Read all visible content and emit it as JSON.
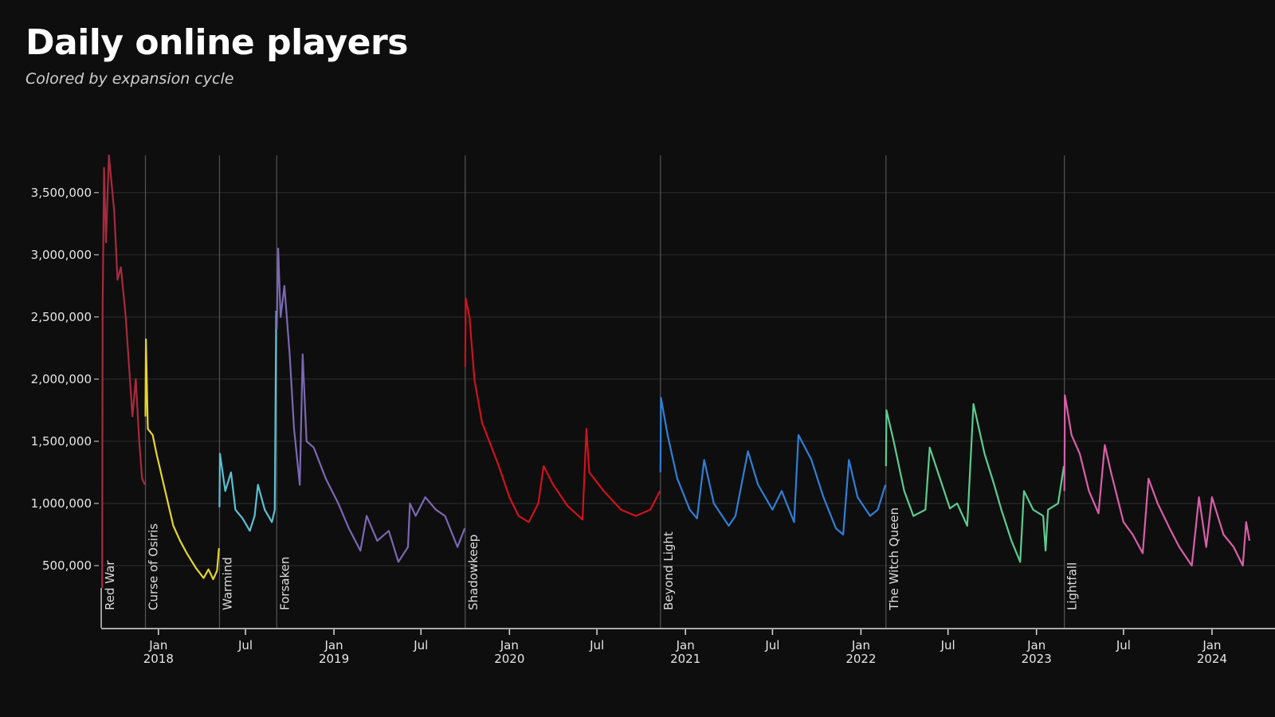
{
  "title": "Daily online players",
  "subtitle": "Colored by expansion cycle",
  "chart_data": {
    "type": "line",
    "title": "Daily online players",
    "subtitle": "Colored by expansion cycle",
    "xlabel": "",
    "ylabel": "",
    "xlim": [
      "2017-09-04",
      "2024-03-19"
    ],
    "ylim": [
      0,
      3800000
    ],
    "grid": true,
    "yticks": [
      {
        "value": 500000,
        "label": "500,000"
      },
      {
        "value": 1000000,
        "label": "1,000,000"
      },
      {
        "value": 1500000,
        "label": "1,500,000"
      },
      {
        "value": 2000000,
        "label": "2,000,000"
      },
      {
        "value": 2500000,
        "label": "2,500,000"
      },
      {
        "value": 3000000,
        "label": "3,000,000"
      },
      {
        "value": 3500000,
        "label": "3,500,000"
      }
    ],
    "xticks": [
      {
        "date": "2018-01-01",
        "label": "Jan",
        "year": "2018"
      },
      {
        "date": "2018-07-01",
        "label": "Jul",
        "year": ""
      },
      {
        "date": "2019-01-01",
        "label": "Jan",
        "year": "2019"
      },
      {
        "date": "2019-07-01",
        "label": "Jul",
        "year": ""
      },
      {
        "date": "2020-01-01",
        "label": "Jan",
        "year": "2020"
      },
      {
        "date": "2020-07-01",
        "label": "Jul",
        "year": ""
      },
      {
        "date": "2021-01-01",
        "label": "Jan",
        "year": "2021"
      },
      {
        "date": "2021-07-01",
        "label": "Jul",
        "year": ""
      },
      {
        "date": "2022-01-01",
        "label": "Jan",
        "year": "2022"
      },
      {
        "date": "2022-07-01",
        "label": "Jul",
        "year": ""
      },
      {
        "date": "2023-01-01",
        "label": "Jan",
        "year": "2023"
      },
      {
        "date": "2023-07-01",
        "label": "Jul",
        "year": ""
      },
      {
        "date": "2024-01-01",
        "label": "Jan",
        "year": "2024"
      }
    ],
    "series": [
      {
        "name": "Red War",
        "start": "2017-09-06",
        "color": "#a82a3e",
        "points": [
          [
            "2017-09-06",
            320000
          ],
          [
            "2017-09-07",
            2600000
          ],
          [
            "2017-09-10",
            3700000
          ],
          [
            "2017-09-14",
            3100000
          ],
          [
            "2017-09-20",
            3800000
          ],
          [
            "2017-10-01",
            3350000
          ],
          [
            "2017-10-08",
            2800000
          ],
          [
            "2017-10-15",
            2900000
          ],
          [
            "2017-10-25",
            2500000
          ],
          [
            "2017-11-01",
            2100000
          ],
          [
            "2017-11-08",
            1700000
          ],
          [
            "2017-11-15",
            2000000
          ],
          [
            "2017-11-22",
            1500000
          ],
          [
            "2017-11-28",
            1200000
          ],
          [
            "2017-12-04",
            1150000
          ]
        ]
      },
      {
        "name": "Curse of Osiris",
        "start": "2017-12-05",
        "color": "#e6d52a",
        "points": [
          [
            "2017-12-05",
            1700000
          ],
          [
            "2017-12-06",
            2320000
          ],
          [
            "2017-12-10",
            1600000
          ],
          [
            "2017-12-20",
            1550000
          ],
          [
            "2017-12-28",
            1400000
          ],
          [
            "2018-01-15",
            1100000
          ],
          [
            "2018-02-01",
            820000
          ],
          [
            "2018-02-15",
            700000
          ],
          [
            "2018-03-01",
            600000
          ],
          [
            "2018-03-20",
            480000
          ],
          [
            "2018-04-05",
            400000
          ],
          [
            "2018-04-15",
            470000
          ],
          [
            "2018-04-25",
            390000
          ],
          [
            "2018-05-03",
            460000
          ],
          [
            "2018-05-07",
            640000
          ]
        ]
      },
      {
        "name": "Warmind",
        "start": "2018-05-08",
        "color": "#5bc0d3",
        "points": [
          [
            "2018-05-08",
            970000
          ],
          [
            "2018-05-09",
            1400000
          ],
          [
            "2018-05-20",
            1100000
          ],
          [
            "2018-06-01",
            1250000
          ],
          [
            "2018-06-10",
            950000
          ],
          [
            "2018-06-25",
            880000
          ],
          [
            "2018-07-10",
            780000
          ],
          [
            "2018-07-20",
            900000
          ],
          [
            "2018-07-27",
            1150000
          ],
          [
            "2018-08-10",
            950000
          ],
          [
            "2018-08-25",
            850000
          ],
          [
            "2018-08-31",
            950000
          ],
          [
            "2018-09-03",
            2550000
          ]
        ]
      },
      {
        "name": "Forsaken",
        "start": "2018-09-04",
        "color": "#7a68b3",
        "points": [
          [
            "2018-09-04",
            2400000
          ],
          [
            "2018-09-07",
            3050000
          ],
          [
            "2018-09-12",
            2500000
          ],
          [
            "2018-09-20",
            2750000
          ],
          [
            "2018-10-01",
            2200000
          ],
          [
            "2018-10-10",
            1600000
          ],
          [
            "2018-10-22",
            1150000
          ],
          [
            "2018-10-28",
            2200000
          ],
          [
            "2018-11-05",
            1500000
          ],
          [
            "2018-11-20",
            1450000
          ],
          [
            "2018-12-15",
            1200000
          ],
          [
            "2019-01-10",
            1000000
          ],
          [
            "2019-02-01",
            800000
          ],
          [
            "2019-02-25",
            620000
          ],
          [
            "2019-03-10",
            900000
          ],
          [
            "2019-04-01",
            700000
          ],
          [
            "2019-04-25",
            780000
          ],
          [
            "2019-05-15",
            530000
          ],
          [
            "2019-06-04",
            650000
          ],
          [
            "2019-06-08",
            1000000
          ],
          [
            "2019-06-20",
            900000
          ],
          [
            "2019-07-10",
            1050000
          ],
          [
            "2019-08-01",
            950000
          ],
          [
            "2019-08-20",
            900000
          ],
          [
            "2019-09-15",
            650000
          ],
          [
            "2019-09-30",
            800000
          ]
        ]
      },
      {
        "name": "Shadowkeep",
        "start": "2019-10-01",
        "color": "#d0121c",
        "points": [
          [
            "2019-10-01",
            2100000
          ],
          [
            "2019-10-02",
            2650000
          ],
          [
            "2019-10-10",
            2500000
          ],
          [
            "2019-10-20",
            2000000
          ],
          [
            "2019-11-05",
            1650000
          ],
          [
            "2019-11-25",
            1450000
          ],
          [
            "2019-12-10",
            1300000
          ],
          [
            "2020-01-01",
            1050000
          ],
          [
            "2020-01-20",
            900000
          ],
          [
            "2020-02-10",
            850000
          ],
          [
            "2020-03-01",
            1000000
          ],
          [
            "2020-03-12",
            1300000
          ],
          [
            "2020-04-01",
            1150000
          ],
          [
            "2020-05-01",
            980000
          ],
          [
            "2020-06-01",
            870000
          ],
          [
            "2020-06-09",
            1600000
          ],
          [
            "2020-06-15",
            1250000
          ],
          [
            "2020-07-15",
            1100000
          ],
          [
            "2020-08-20",
            950000
          ],
          [
            "2020-09-20",
            900000
          ],
          [
            "2020-10-20",
            950000
          ],
          [
            "2020-11-09",
            1100000
          ]
        ]
      },
      {
        "name": "Beyond Light",
        "start": "2020-11-10",
        "color": "#2f7fd6",
        "points": [
          [
            "2020-11-10",
            1250000
          ],
          [
            "2020-11-11",
            1850000
          ],
          [
            "2020-11-25",
            1550000
          ],
          [
            "2020-12-15",
            1200000
          ],
          [
            "2021-01-10",
            950000
          ],
          [
            "2021-01-25",
            880000
          ],
          [
            "2021-02-09",
            1350000
          ],
          [
            "2021-03-01",
            1000000
          ],
          [
            "2021-04-01",
            820000
          ],
          [
            "2021-04-15",
            900000
          ],
          [
            "2021-05-11",
            1420000
          ],
          [
            "2021-06-01",
            1150000
          ],
          [
            "2021-07-01",
            950000
          ],
          [
            "2021-07-20",
            1100000
          ],
          [
            "2021-08-15",
            850000
          ],
          [
            "2021-08-24",
            1550000
          ],
          [
            "2021-09-20",
            1350000
          ],
          [
            "2021-10-15",
            1050000
          ],
          [
            "2021-11-10",
            800000
          ],
          [
            "2021-11-25",
            750000
          ],
          [
            "2021-12-07",
            1350000
          ],
          [
            "2021-12-25",
            1050000
          ],
          [
            "2022-01-20",
            900000
          ],
          [
            "2022-02-05",
            950000
          ],
          [
            "2022-02-21",
            1150000
          ]
        ]
      },
      {
        "name": "The Witch Queen",
        "start": "2022-02-22",
        "color": "#5ccb90",
        "points": [
          [
            "2022-02-22",
            1300000
          ],
          [
            "2022-02-23",
            1750000
          ],
          [
            "2022-03-10",
            1500000
          ],
          [
            "2022-04-01",
            1100000
          ],
          [
            "2022-04-20",
            900000
          ],
          [
            "2022-05-15",
            950000
          ],
          [
            "2022-05-24",
            1450000
          ],
          [
            "2022-06-10",
            1250000
          ],
          [
            "2022-07-05",
            960000
          ],
          [
            "2022-07-20",
            1000000
          ],
          [
            "2022-08-10",
            820000
          ],
          [
            "2022-08-23",
            1800000
          ],
          [
            "2022-09-15",
            1400000
          ],
          [
            "2022-10-05",
            1150000
          ],
          [
            "2022-10-20",
            950000
          ],
          [
            "2022-11-10",
            700000
          ],
          [
            "2022-11-28",
            530000
          ],
          [
            "2022-12-06",
            1100000
          ],
          [
            "2022-12-25",
            950000
          ],
          [
            "2023-01-15",
            900000
          ],
          [
            "2023-01-20",
            620000
          ],
          [
            "2023-01-25",
            950000
          ],
          [
            "2023-02-15",
            1000000
          ],
          [
            "2023-02-27",
            1300000
          ]
        ]
      },
      {
        "name": "Lightfall",
        "start": "2023-02-28",
        "color": "#d95fa8",
        "points": [
          [
            "2023-02-28",
            1100000
          ],
          [
            "2023-03-01",
            1870000
          ],
          [
            "2023-03-15",
            1550000
          ],
          [
            "2023-04-01",
            1400000
          ],
          [
            "2023-04-20",
            1100000
          ],
          [
            "2023-05-10",
            920000
          ],
          [
            "2023-05-23",
            1470000
          ],
          [
            "2023-06-05",
            1250000
          ],
          [
            "2023-07-01",
            850000
          ],
          [
            "2023-07-20",
            750000
          ],
          [
            "2023-08-10",
            600000
          ],
          [
            "2023-08-22",
            1200000
          ],
          [
            "2023-09-10",
            1000000
          ],
          [
            "2023-10-05",
            800000
          ],
          [
            "2023-10-25",
            650000
          ],
          [
            "2023-11-20",
            500000
          ],
          [
            "2023-12-05",
            1050000
          ],
          [
            "2023-12-20",
            650000
          ],
          [
            "2024-01-01",
            1050000
          ],
          [
            "2024-01-25",
            750000
          ],
          [
            "2024-02-15",
            650000
          ],
          [
            "2024-03-05",
            500000
          ],
          [
            "2024-03-12",
            850000
          ],
          [
            "2024-03-19",
            700000
          ]
        ]
      }
    ]
  }
}
